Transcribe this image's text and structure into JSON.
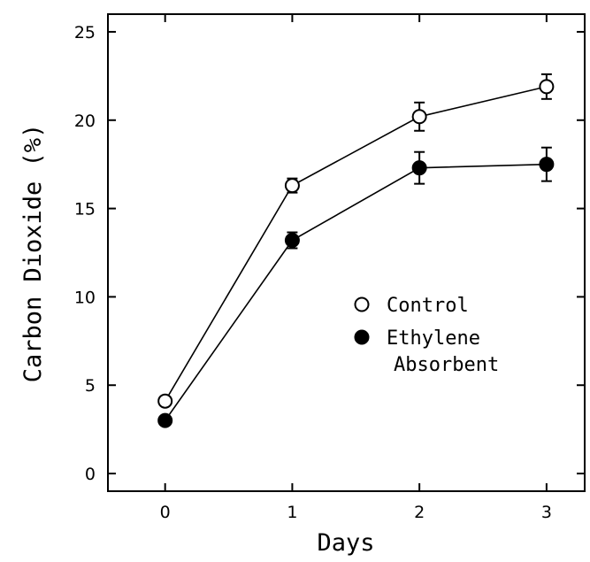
{
  "chart_data": {
    "type": "line",
    "title": "",
    "xlabel": "Days",
    "ylabel": "Carbon Dioxide (%)",
    "xlim": [
      -0.45,
      3.3
    ],
    "ylim": [
      -1,
      26
    ],
    "x_ticks": [
      "0",
      "1",
      "2",
      "3"
    ],
    "y_ticks": [
      "0",
      "5",
      "10",
      "15",
      "20",
      "25"
    ],
    "x": [
      0,
      1,
      2,
      3
    ],
    "series": [
      {
        "name": "Control",
        "marker": "open-circle",
        "values": [
          4.1,
          16.3,
          20.2,
          21.9
        ],
        "errors": [
          0.15,
          0.4,
          0.8,
          0.7
        ]
      },
      {
        "name": "Ethylene Absorbent",
        "marker": "filled-circle",
        "values": [
          3.0,
          13.2,
          17.3,
          17.5
        ],
        "errors": [
          0.1,
          0.45,
          0.9,
          0.95
        ]
      }
    ],
    "legend": {
      "entries": [
        {
          "lines": [
            "Control"
          ]
        },
        {
          "lines": [
            "Ethylene",
            "Absorbent"
          ]
        }
      ],
      "placement": "center-right"
    },
    "grid": false,
    "colors": {
      "line": "#000000",
      "open_fill": "#ffffff",
      "closed_fill": "#000000"
    }
  }
}
